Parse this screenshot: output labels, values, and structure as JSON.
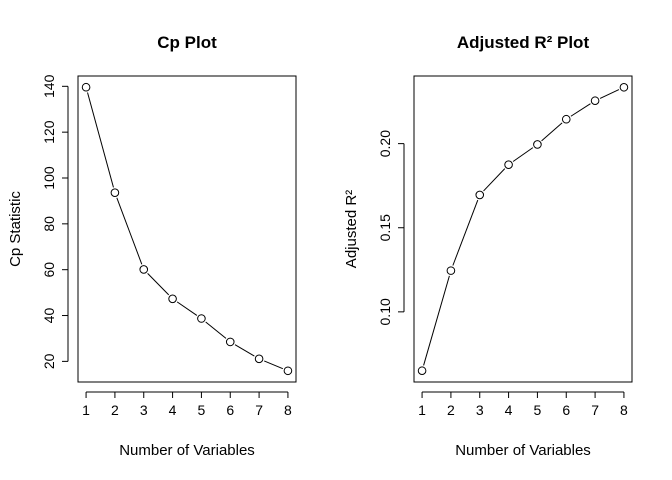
{
  "chart_data": [
    {
      "type": "line",
      "title": "Cp Plot",
      "xlabel": "Number of Variables",
      "ylabel": "Cp Statistic",
      "x": [
        1,
        2,
        3,
        4,
        5,
        6,
        7,
        8
      ],
      "series": [
        {
          "values": [
            139.6,
            93.6,
            60.1,
            47.3,
            38.7,
            28.5,
            21.1,
            15.9
          ]
        }
      ],
      "xticks": [
        1,
        2,
        3,
        4,
        5,
        6,
        7,
        8
      ],
      "yticks": [
        20,
        40,
        60,
        80,
        100,
        120,
        140
      ],
      "xlim": [
        0.72,
        8.28
      ],
      "ylim": [
        11.0,
        144.5
      ],
      "grid": false,
      "marker": "open-circle"
    },
    {
      "type": "line",
      "title": "Adjusted R² Plot",
      "xlabel": "Number of Variables",
      "ylabel": "Adjusted R²",
      "x": [
        1,
        2,
        3,
        4,
        5,
        6,
        7,
        8
      ],
      "series": [
        {
          "values": [
            0.065,
            0.1245,
            0.1695,
            0.1875,
            0.1995,
            0.2145,
            0.2255,
            0.2335
          ]
        }
      ],
      "xticks": [
        1,
        2,
        3,
        4,
        5,
        6,
        7,
        8
      ],
      "yticks": [
        0.1,
        0.15,
        0.2
      ],
      "xlim": [
        0.72,
        8.28
      ],
      "ylim": [
        0.0583,
        0.2402
      ],
      "grid": false,
      "marker": "open-circle"
    }
  ]
}
